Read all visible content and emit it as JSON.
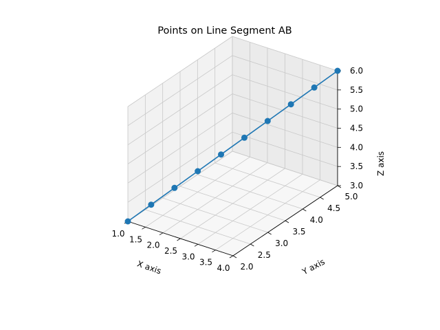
{
  "chart_data": {
    "type": "line",
    "projection": "3d",
    "title": "Points on Line Segment AB",
    "xlabel": "X axis",
    "ylabel": "Y axis",
    "zlabel": "Z axis",
    "xlim": [
      1.0,
      4.0
    ],
    "ylim": [
      2.0,
      5.0
    ],
    "zlim": [
      3.0,
      6.0
    ],
    "x_ticks": [
      "1.0",
      "1.5",
      "2.0",
      "2.5",
      "3.0",
      "3.5",
      "4.0"
    ],
    "y_ticks": [
      "2.0",
      "2.5",
      "3.0",
      "3.5",
      "4.0",
      "4.5",
      "5.0"
    ],
    "z_ticks": [
      "3.0",
      "3.5",
      "4.0",
      "4.5",
      "5.0",
      "5.5",
      "6.0"
    ],
    "grid": true,
    "series": [
      {
        "color": "#1f77b4",
        "marker": "circle",
        "x": [
          1.0,
          1.333,
          1.667,
          2.0,
          2.333,
          2.667,
          3.0,
          3.333,
          3.667,
          4.0
        ],
        "y": [
          2.0,
          2.333,
          2.667,
          3.0,
          3.333,
          3.667,
          4.0,
          4.333,
          4.667,
          5.0
        ],
        "z": [
          3.0,
          3.333,
          3.667,
          4.0,
          4.333,
          4.667,
          5.0,
          5.333,
          5.667,
          6.0
        ]
      }
    ]
  }
}
